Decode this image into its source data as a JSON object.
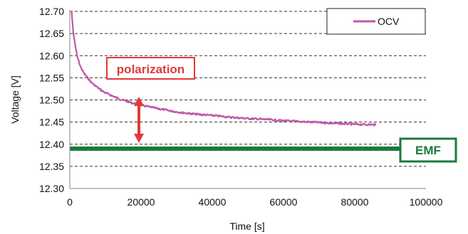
{
  "chart_data": {
    "type": "line",
    "xlabel": "Time [s]",
    "ylabel": "Voltage [V]",
    "xlim": [
      0,
      100000
    ],
    "ylim": [
      12.3,
      12.7
    ],
    "x_ticks": [
      0,
      20000,
      40000,
      60000,
      80000,
      100000
    ],
    "x_tick_labels": [
      "0",
      "20000",
      "40000",
      "60000",
      "80000",
      "100000"
    ],
    "y_ticks": [
      12.3,
      12.35,
      12.4,
      12.45,
      12.5,
      12.55,
      12.6,
      12.65,
      12.7
    ],
    "y_tick_labels": [
      "12.30",
      "12.35",
      "12.40",
      "12.45",
      "12.50",
      "12.55",
      "12.60",
      "12.65",
      "12.70"
    ],
    "grid": "horizontal dashed",
    "legend_position": "top-right",
    "series": [
      {
        "name": "OCV",
        "color": "#c157a8",
        "x": [
          500,
          1000,
          1500,
          2000,
          3000,
          4000,
          5000,
          6000,
          7000,
          8000,
          9000,
          10000,
          12000,
          14000,
          16000,
          18000,
          20000,
          25000,
          30000,
          35000,
          40000,
          45000,
          50000,
          55000,
          60000,
          65000,
          70000,
          75000,
          80000,
          86000
        ],
        "y": [
          12.7,
          12.65,
          12.625,
          12.6,
          12.575,
          12.56,
          12.55,
          12.54,
          12.533,
          12.527,
          12.521,
          12.516,
          12.509,
          12.502,
          12.497,
          12.492,
          12.488,
          12.48,
          12.473,
          12.468,
          12.465,
          12.461,
          12.458,
          12.456,
          12.453,
          12.451,
          12.449,
          12.447,
          12.445,
          12.444
        ]
      },
      {
        "name": "EMF",
        "color": "#1a7a3c",
        "x": [
          0,
          100000
        ],
        "y": [
          12.39,
          12.39
        ]
      }
    ],
    "annotations": {
      "polarization": {
        "text": "polarization",
        "color": "#e03a3a",
        "arrow_x": 9000,
        "arrow_from": 12.52,
        "arrow_to": 12.39
      },
      "emf": {
        "text": "EMF",
        "color": "#1a7a3c"
      }
    },
    "legend": [
      {
        "label": "OCV",
        "color": "#c157a8"
      }
    ]
  }
}
